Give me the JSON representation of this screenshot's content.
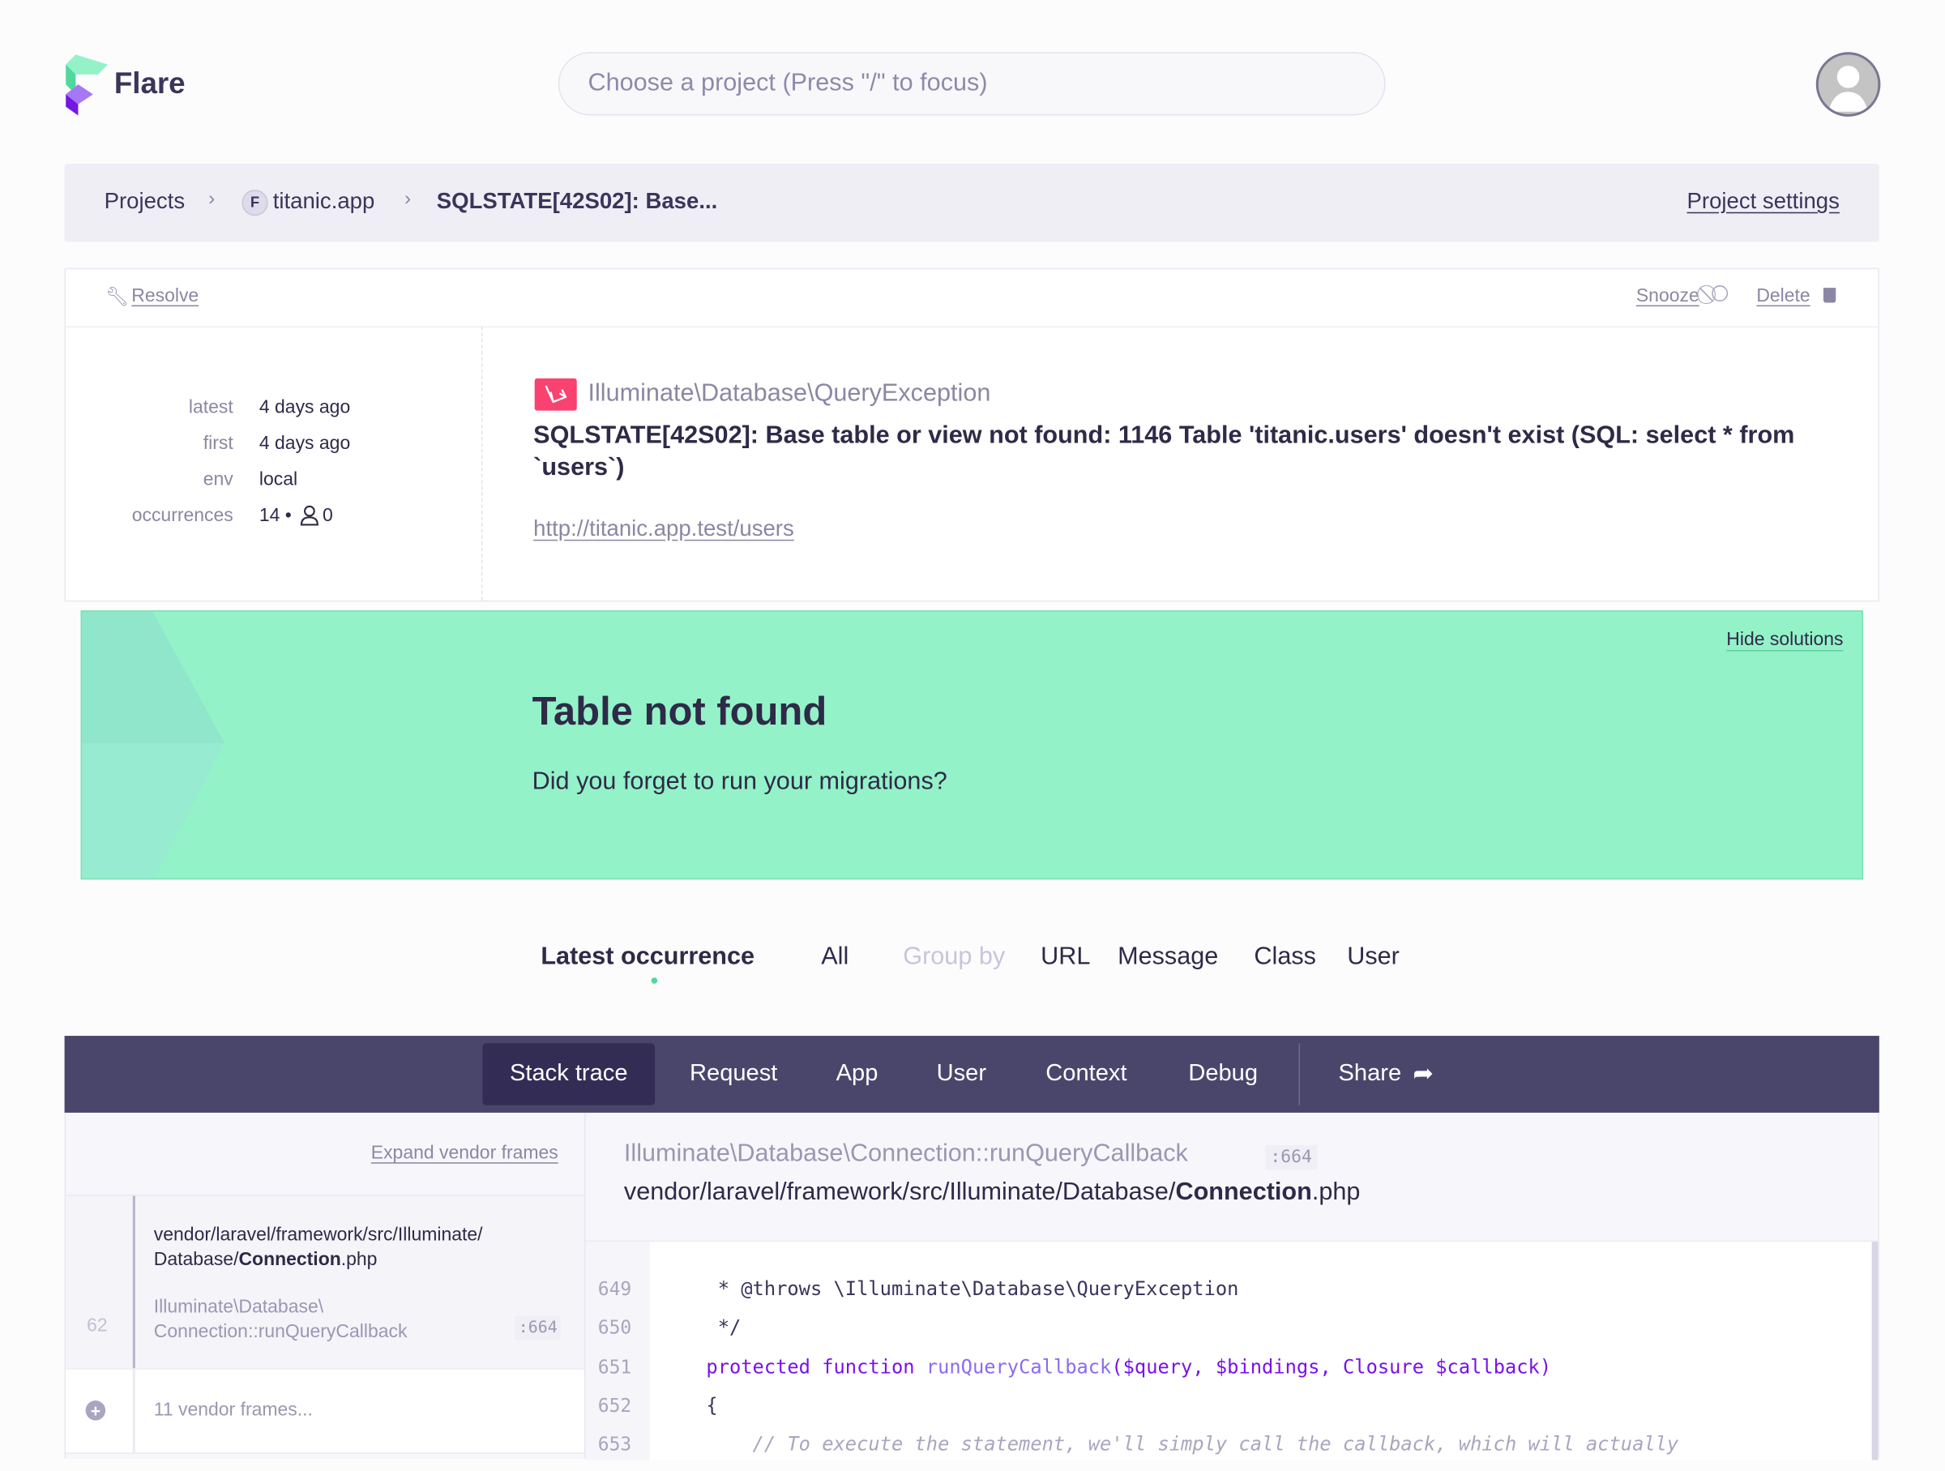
{
  "header": {
    "logo_text": "Flare",
    "search_placeholder": "Choose a project (Press \"/\" to focus)"
  },
  "breadcrumb": {
    "projects": "Projects",
    "project_badge": "F",
    "project": "titanic.app",
    "current": "SQLSTATE[42S02]: Base...",
    "settings": "Project settings"
  },
  "actions": {
    "resolve": "Resolve",
    "snooze": "Snooze",
    "delete": "Delete"
  },
  "meta": [
    {
      "label": "latest",
      "value": "4 days ago"
    },
    {
      "label": "first",
      "value": "4 days ago"
    },
    {
      "label": "env",
      "value": "local"
    }
  ],
  "occurrences": {
    "label": "occurrences",
    "count": "14 •",
    "users": "0"
  },
  "exception": {
    "class": "Illuminate\\Database\\QueryException",
    "message": "SQLSTATE[42S02]: Base table or view not found: 1146 Table 'titanic.users' doesn't exist (SQL: select * from `users`)",
    "url": "http://titanic.app.test/users"
  },
  "solution": {
    "hide": "Hide solutions",
    "title": "Table not found",
    "body": "Did you forget to run your migrations?",
    "color": "#94f2c8"
  },
  "occurrence_tabs": {
    "latest": "Latest occurrence",
    "all": "All",
    "group_by": "Group by",
    "url": "URL",
    "message": "Message",
    "class": "Class",
    "user": "User"
  },
  "nav_tabs": {
    "stack_trace": "Stack trace",
    "request": "Request",
    "app": "App",
    "user": "User",
    "context": "Context",
    "debug": "Debug",
    "share": "Share"
  },
  "frames": {
    "expand": "Expand vendor frames",
    "selected": {
      "path_prefix": "vendor/laravel/framework/src/Illuminate/\nDatabase/",
      "file": "Connection",
      "ext": ".php",
      "class": "Illuminate\\Database\\\nConnection::runQueryCallback",
      "line": ":664",
      "number": "62"
    },
    "vendor_collapsed": "11 vendor frames..."
  },
  "code": {
    "class": "Illuminate\\Database\\Connection::runQueryCallback",
    "line": ":664",
    "path_prefix": "vendor/laravel/framework/src/Illuminate/Database/",
    "file": "Connection",
    "ext": ".php",
    "lines": [
      {
        "n": "649",
        "text": "     * @throws \\Illuminate\\Database\\QueryException"
      },
      {
        "n": "650",
        "text": "     */"
      },
      {
        "n": "651",
        "kw": "    protected function ",
        "fn": "runQueryCallback",
        "rest": "($query, $bindings, Closure $callback)"
      },
      {
        "n": "652",
        "text": "    {"
      },
      {
        "n": "653",
        "comment": "        // To execute the statement, we'll simply call the callback, which will actually"
      }
    ]
  }
}
